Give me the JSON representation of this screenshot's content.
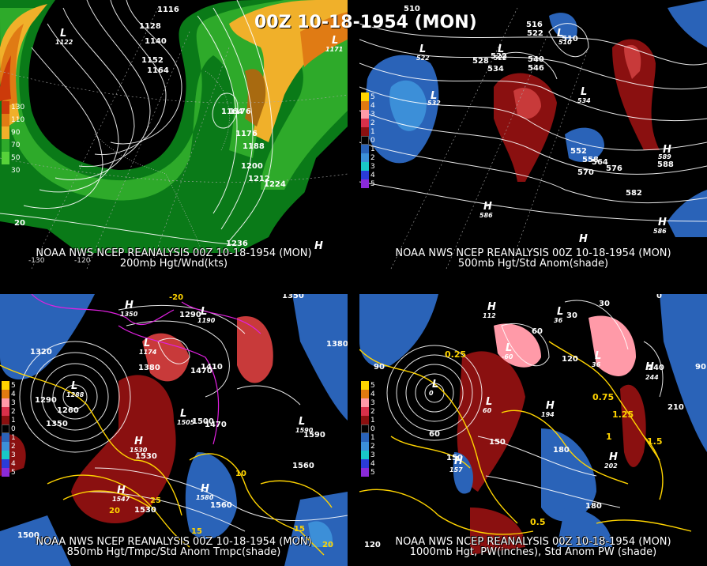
{
  "main_title": "00Z 10-18-1954 (MON)",
  "panels": [
    {
      "id": "p1",
      "footer_line1": "NOAA NWS NCEP REANALYSIS 00Z 10-18-1954 (MON)",
      "footer_line2": "200mb Hgt/Wnd(kts)",
      "colorbar": [
        "130",
        "110",
        "90",
        "70",
        "50",
        "30"
      ],
      "colorbar_colors": [
        "#cc3a0a",
        "#e07b14",
        "#f0b02a",
        "#2eaa2a",
        "#57d23a",
        "#0a7a18"
      ],
      "contour_labels": [
        "1116",
        "1128",
        "1140",
        "1152",
        "1164",
        "1176",
        "1188",
        "1200",
        "1212",
        "1224",
        "1236",
        "1164",
        "1176",
        "20"
      ],
      "lows": [
        {
          "t": "L",
          "v": "1122"
        },
        {
          "t": "L",
          "v": "1171"
        }
      ],
      "highs": [
        {
          "t": "H",
          "v": ""
        }
      ],
      "lon_labels": [
        "-130",
        "-120"
      ]
    },
    {
      "id": "p2",
      "footer_line1": "NOAA NWS NCEP REANALYSIS 00Z 10-18-1954 (MON)",
      "footer_line2": "500mb Hgt/Std Anom(shade)",
      "colorbar": [
        "5",
        "4",
        "3",
        "2",
        "1",
        "0",
        "1",
        "2",
        "3",
        "4",
        "5"
      ],
      "contour_labels": [
        "510",
        "516",
        "522",
        "528",
        "534",
        "540",
        "546",
        "552",
        "558",
        "564",
        "570",
        "576",
        "582",
        "588",
        "522",
        "510"
      ],
      "lows": [
        {
          "t": "L",
          "v": "522"
        },
        {
          "t": "L",
          "v": "522"
        },
        {
          "t": "L",
          "v": "532"
        },
        {
          "t": "L",
          "v": "510"
        },
        {
          "t": "L",
          "v": "534"
        }
      ],
      "highs": [
        {
          "t": "H",
          "v": "589"
        },
        {
          "t": "H",
          "v": "586"
        },
        {
          "t": "H",
          "v": "586"
        },
        {
          "t": "H",
          "v": ""
        }
      ]
    },
    {
      "id": "p3",
      "footer_line1": "NOAA NWS NCEP REANALYSIS 00Z 10-18-1954 (MON)",
      "footer_line2": "850mb Hgt/Tmpc/Std Anom Tmpc(shade)",
      "colorbar": [
        "5",
        "4",
        "3",
        "2",
        "1",
        "0",
        "1",
        "2",
        "3",
        "4",
        "5"
      ],
      "contour_labels": [
        "1350",
        "1320",
        "1290",
        "1260",
        "1380",
        "1290",
        "1470",
        "1410",
        "1500",
        "1470",
        "1350",
        "1380",
        "1560",
        "1530",
        "1560",
        "1530",
        "1590",
        "1500",
        "-20",
        "20",
        "25",
        "10",
        "15",
        "20",
        "15"
      ],
      "lows": [
        {
          "t": "L",
          "v": "1288"
        },
        {
          "t": "L",
          "v": "1174"
        },
        {
          "t": "L",
          "v": "1190"
        },
        {
          "t": "L",
          "v": "1505"
        },
        {
          "t": "L",
          "v": "1590"
        }
      ],
      "highs": [
        {
          "t": "H",
          "v": "1350"
        },
        {
          "t": "H",
          "v": "1530"
        },
        {
          "t": "H",
          "v": "1547"
        },
        {
          "t": "H",
          "v": "1580"
        }
      ]
    },
    {
      "id": "p4",
      "footer_line1": "NOAA NWS NCEP REANALYSIS 00Z 10-18-1954 (MON)",
      "footer_line2": "1000mb Hgt, PW(inches), Std Anom PW (shade)",
      "colorbar": [
        "5",
        "4",
        "3",
        "2",
        "1",
        "0",
        "1",
        "2",
        "3",
        "4",
        "5"
      ],
      "contour_labels": [
        "30",
        "0",
        "60",
        "90",
        "120",
        "150",
        "180",
        "210",
        "240",
        "30",
        "60",
        "90",
        "120",
        "150",
        "180",
        "0.25",
        "0.5",
        "0.75",
        "1",
        "1.5",
        "1.25"
      ],
      "lows": [
        {
          "t": "L",
          "v": "0"
        },
        {
          "t": "L",
          "v": "-60"
        },
        {
          "t": "L",
          "v": "36"
        },
        {
          "t": "L",
          "v": "36"
        },
        {
          "t": "L",
          "v": "60"
        }
      ],
      "highs": [
        {
          "t": "H",
          "v": "112"
        },
        {
          "t": "H",
          "v": "157"
        },
        {
          "t": "H",
          "v": "202"
        },
        {
          "t": "H",
          "v": "244"
        },
        {
          "t": "H",
          "v": "194"
        }
      ]
    }
  ]
}
